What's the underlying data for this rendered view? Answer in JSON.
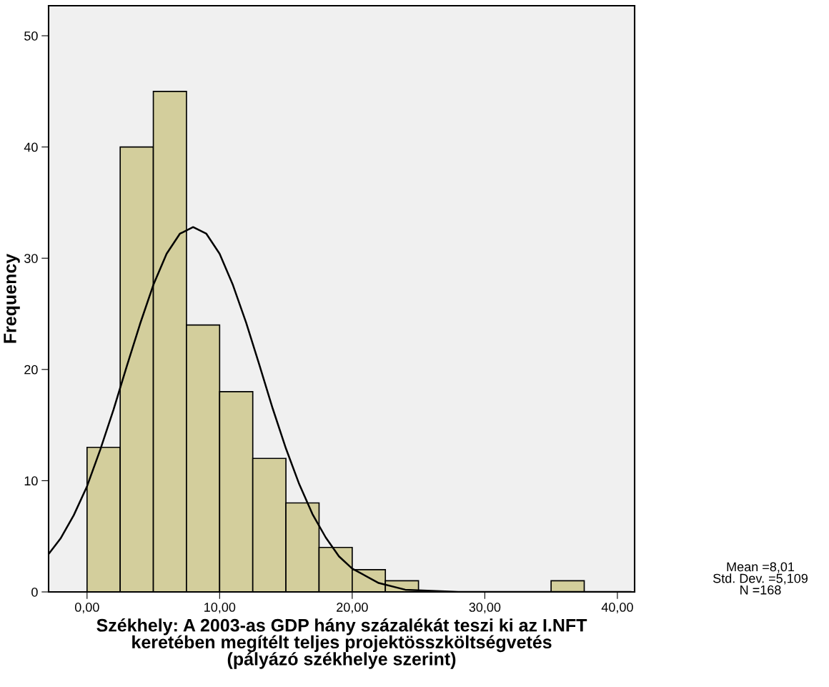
{
  "chart_data": {
    "type": "histogram",
    "xlabel": "Székhely: A 2003-as GDP hány százalékát teszi ki az I.NFT\nkeretében megítélt teljes projektösszköltségvetés\n(pályázó székhelye szerint)",
    "ylabel": "Frequency",
    "bins": [
      0,
      2.5,
      5,
      7.5,
      10,
      12.5,
      15,
      17.5,
      20,
      22.5,
      25,
      27.5,
      30,
      32.5,
      35,
      37.5
    ],
    "values": [
      13,
      40,
      45,
      24,
      18,
      12,
      8,
      4,
      2,
      1,
      0,
      0,
      0,
      0,
      1
    ],
    "color": "#d3ce9c",
    "series": [
      {
        "type": "line",
        "color": "#000000",
        "x": [
          -2.9,
          -2,
          -1,
          0,
          1,
          2,
          3,
          4,
          5,
          6,
          7,
          8,
          9,
          10,
          11,
          12,
          13,
          14,
          15,
          16,
          17,
          18,
          19,
          20,
          22,
          24,
          26,
          28,
          32,
          36,
          41
        ],
        "values": [
          3.4,
          4.8,
          6.9,
          9.5,
          12.8,
          16.4,
          20.3,
          24.1,
          27.6,
          30.4,
          32.2,
          32.8,
          32.2,
          30.4,
          27.6,
          24.2,
          20.4,
          16.5,
          12.9,
          9.7,
          7.0,
          4.9,
          3.2,
          2.1,
          0.8,
          0.2,
          0.1,
          0,
          0,
          0,
          0
        ]
      }
    ],
    "xlim": [
      -2.9,
      41.3
    ],
    "ylim": [
      0,
      52.7
    ],
    "xticks": [
      {
        "value": 0,
        "label": "0,00"
      },
      {
        "value": 10,
        "label": "10,00"
      },
      {
        "value": 20,
        "label": "20,00"
      },
      {
        "value": 30,
        "label": "30,00"
      },
      {
        "value": 40,
        "label": "40,00"
      }
    ],
    "yticks": [
      0,
      10,
      20,
      30,
      40,
      50
    ],
    "grid": false,
    "legend": false,
    "annotations": [
      "Mean =8,01\nStd. Dev. =5,109\nN =168"
    ]
  }
}
